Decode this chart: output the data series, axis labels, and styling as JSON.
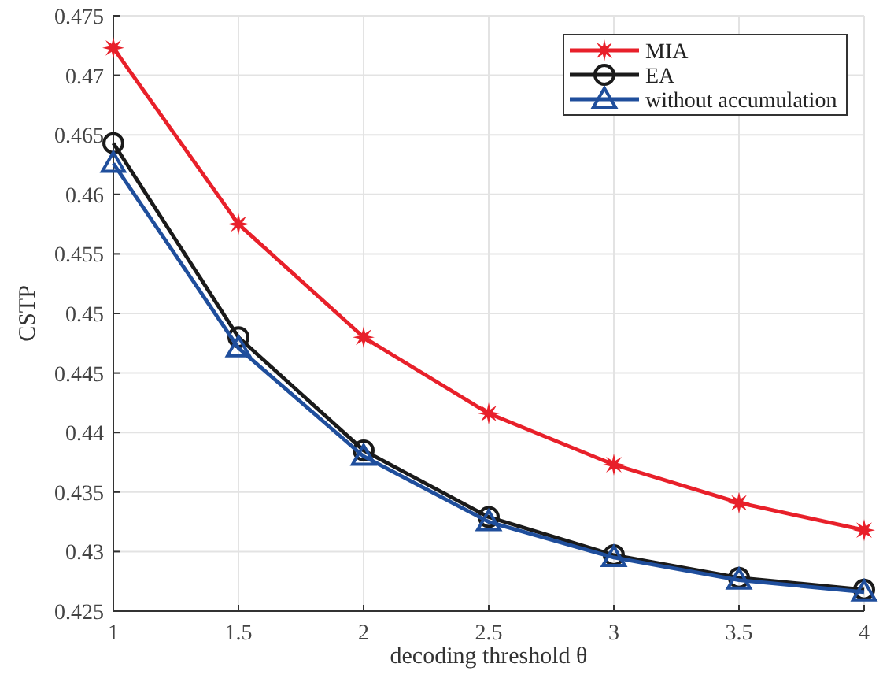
{
  "chart_data": {
    "type": "line",
    "xlabel": "decoding threshold θ",
    "ylabel": "CSTP",
    "x": [
      1,
      1.5,
      2,
      2.5,
      3,
      3.5,
      4
    ],
    "xlim": [
      1,
      4
    ],
    "xticks": [
      1,
      1.5,
      2,
      2.5,
      3,
      3.5,
      4
    ],
    "ylim": [
      0.425,
      0.475
    ],
    "yticks": [
      0.425,
      0.43,
      0.435,
      0.44,
      0.445,
      0.45,
      0.455,
      0.46,
      0.465,
      0.47,
      0.475
    ],
    "grid": true,
    "legend": "top right",
    "line_style": "solid",
    "series": [
      {
        "name": "MIA",
        "color": "#e8202a",
        "marker": "star",
        "values": [
          0.4723,
          0.4575,
          0.448,
          0.4416,
          0.4373,
          0.4341,
          0.4318
        ]
      },
      {
        "name": "EA",
        "color": "#1a1a1a",
        "marker": "circle",
        "values": [
          0.4643,
          0.448,
          0.4385,
          0.4329,
          0.4297,
          0.4278,
          0.4268
        ]
      },
      {
        "name": "without accumulation",
        "color": "#1f4e9c",
        "marker": "triangle",
        "values": [
          0.4626,
          0.4471,
          0.438,
          0.4325,
          0.4295,
          0.4276,
          0.4266
        ]
      }
    ]
  }
}
